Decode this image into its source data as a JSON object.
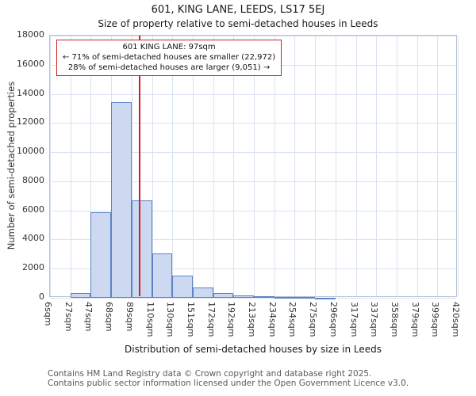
{
  "page": {
    "title": "601, KING LANE, LEEDS, LS17 5EJ",
    "subtitle": "Size of property relative to semi-detached houses in Leeds",
    "footer_line1": "Contains HM Land Registry data © Crown copyright and database right 2025.",
    "footer_line2": "Contains public sector information licensed under the Open Government Licence v3.0."
  },
  "chart_data": {
    "type": "bar",
    "title": "601, KING LANE, LEEDS, LS17 5EJ",
    "subtitle": "Size of property relative to semi-detached houses in Leeds",
    "xlabel": "Distribution of semi-detached houses by size in Leeds",
    "ylabel": "Number of semi-detached properties",
    "bin_edges": [
      6,
      27,
      47,
      68,
      89,
      110,
      130,
      151,
      172,
      192,
      213,
      234,
      254,
      275,
      296,
      317,
      337,
      358,
      379,
      399,
      420
    ],
    "x_tick_labels": [
      "6sqm",
      "27sqm",
      "47sqm",
      "68sqm",
      "89sqm",
      "110sqm",
      "130sqm",
      "151sqm",
      "172sqm",
      "192sqm",
      "213sqm",
      "234sqm",
      "254sqm",
      "275sqm",
      "296sqm",
      "317sqm",
      "337sqm",
      "358sqm",
      "379sqm",
      "399sqm",
      "420sqm"
    ],
    "values": [
      0,
      300,
      5900,
      13450,
      6700,
      3050,
      1500,
      680,
      300,
      160,
      110,
      70,
      45,
      20,
      0,
      0,
      0,
      0,
      0,
      0
    ],
    "ylim": [
      0,
      18000
    ],
    "y_ticks": [
      0,
      2000,
      4000,
      6000,
      8000,
      10000,
      12000,
      14000,
      16000,
      18000
    ],
    "grid": true,
    "legend": "none",
    "marker": {
      "value_sqm": 97,
      "color": "#cc2222"
    },
    "annotation": {
      "line1": "601 KING LANE: 97sqm",
      "line2": "← 71% of semi-detached houses are smaller (22,972)",
      "line3": "28% of semi-detached houses are larger (9,051) →"
    },
    "colors": {
      "bar_fill": "#ccd9f0",
      "bar_stroke": "#5c83c4",
      "grid": "#d9e2f0",
      "marker": "#cc2222",
      "frame": "#b7c2d6"
    }
  }
}
